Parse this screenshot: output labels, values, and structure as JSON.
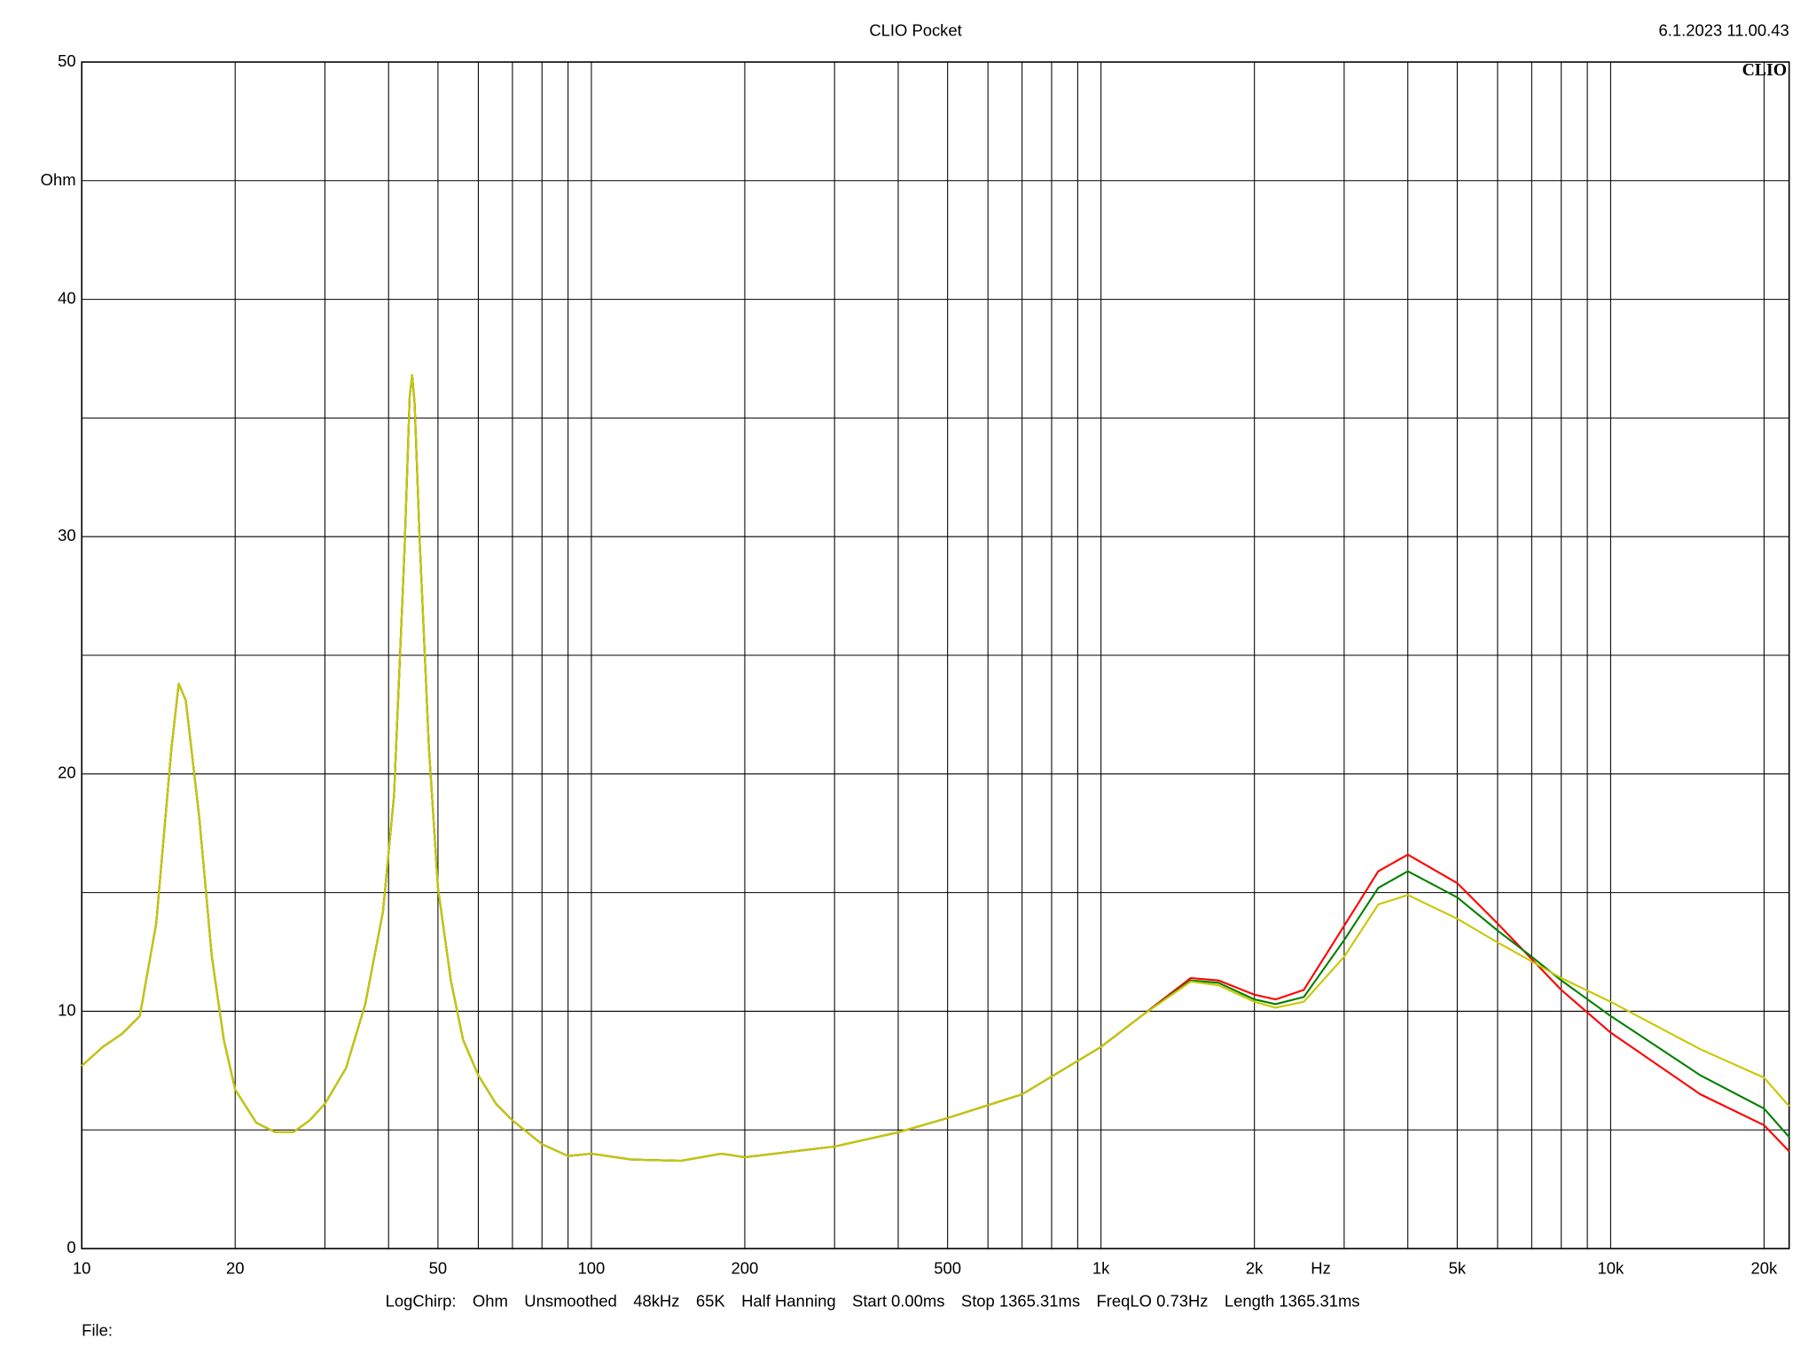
{
  "chart_data": {
    "type": "line",
    "title": "CLIO Pocket",
    "timestamp": "6.1.2023 11.00.43",
    "logo": "CLIO",
    "y_label": "Ohm",
    "x_label": "Hz",
    "info": [
      "LogChirp:",
      "Ohm",
      "Unsmoothed",
      "48kHz",
      "65K",
      "Half Hanning",
      "Start 0.00ms",
      "Stop 1365.31ms",
      "FreqLO 0.73Hz",
      "Length 1365.31ms"
    ],
    "file_label": "File:",
    "x_log": true,
    "grid": true,
    "xlim": [
      10,
      22400
    ],
    "ylim": [
      0,
      50
    ],
    "xticks": [
      10,
      20,
      50,
      100,
      200,
      500,
      {
        "value": 1000,
        "label": "1k"
      },
      {
        "value": 2000,
        "label": "2k"
      },
      {
        "value": 5000,
        "label": "5k"
      },
      {
        "value": 10000,
        "label": "10k"
      },
      {
        "value": 20000,
        "label": "20k"
      }
    ],
    "xticks_minor": [
      30,
      40,
      60,
      70,
      80,
      90,
      300,
      400,
      600,
      700,
      800,
      900,
      3000,
      4000,
      6000,
      7000,
      8000,
      9000
    ],
    "yticks": [
      0,
      10,
      20,
      30,
      40,
      50
    ],
    "yticks_minor": [
      5,
      15,
      25,
      35,
      45
    ],
    "x": [
      10,
      11,
      12,
      13,
      14,
      15,
      15.5,
      16,
      17,
      18,
      19,
      20,
      22,
      24,
      26,
      28,
      30,
      33,
      36,
      39,
      41,
      43,
      44,
      44.5,
      45,
      46,
      48,
      50,
      53,
      56,
      60,
      65,
      70,
      80,
      90,
      100,
      120,
      150,
      180,
      200,
      300,
      400,
      500,
      700,
      1000,
      1200,
      1500,
      1700,
      2000,
      2200,
      2500,
      3000,
      3500,
      4000,
      5000,
      6000,
      7000,
      8000,
      10000,
      15000,
      20000,
      22400
    ],
    "series": [
      {
        "name": "red",
        "color": "#ff0000",
        "values": [
          7.7,
          8.5,
          9.05,
          9.8,
          13.7,
          21.1,
          23.8,
          23.1,
          18.2,
          12.3,
          8.8,
          6.7,
          5.3,
          4.9,
          4.9,
          5.4,
          6.1,
          7.6,
          10.3,
          14.2,
          19.1,
          29.5,
          35.9,
          36.8,
          35.6,
          30,
          21.1,
          15.2,
          11.3,
          8.8,
          7.3,
          6.1,
          5.4,
          4.4,
          3.9,
          4.0,
          3.75,
          3.7,
          4.0,
          3.85,
          4.3,
          4.9,
          5.5,
          6.5,
          8.5,
          9.8,
          11.4,
          11.3,
          10.7,
          10.5,
          10.9,
          13.6,
          15.9,
          16.6,
          15.4,
          13.7,
          12.2,
          10.9,
          9.1,
          6.5,
          5.2,
          4.1
        ]
      },
      {
        "name": "green",
        "color": "#008000",
        "values": [
          7.7,
          8.5,
          9.05,
          9.8,
          13.7,
          21.1,
          23.8,
          23.1,
          18.2,
          12.3,
          8.8,
          6.7,
          5.3,
          4.9,
          4.9,
          5.4,
          6.1,
          7.6,
          10.3,
          14.2,
          19.1,
          29.5,
          35.9,
          36.8,
          35.6,
          30,
          21.1,
          15.2,
          11.3,
          8.8,
          7.3,
          6.1,
          5.4,
          4.4,
          3.9,
          4.0,
          3.75,
          3.7,
          4.0,
          3.85,
          4.3,
          4.9,
          5.5,
          6.5,
          8.5,
          9.8,
          11.3,
          11.2,
          10.5,
          10.3,
          10.6,
          13.0,
          15.2,
          15.9,
          14.8,
          13.4,
          12.3,
          11.3,
          9.8,
          7.3,
          5.9,
          4.7
        ]
      },
      {
        "name": "yellow",
        "color": "#c8c800",
        "values": [
          7.7,
          8.5,
          9.05,
          9.8,
          13.7,
          21.1,
          23.8,
          23.1,
          18.2,
          12.3,
          8.8,
          6.7,
          5.3,
          4.9,
          4.9,
          5.4,
          6.1,
          7.6,
          10.3,
          14.2,
          19.1,
          29.5,
          35.9,
          36.8,
          35.6,
          30,
          21.1,
          15.2,
          11.3,
          8.8,
          7.3,
          6.1,
          5.4,
          4.4,
          3.9,
          4.0,
          3.75,
          3.7,
          4.0,
          3.85,
          4.3,
          4.9,
          5.5,
          6.5,
          8.5,
          9.8,
          11.25,
          11.1,
          10.4,
          10.15,
          10.4,
          12.3,
          14.5,
          14.9,
          13.9,
          12.9,
          12.1,
          11.4,
          10.4,
          8.4,
          7.2,
          6.0
        ]
      }
    ]
  }
}
